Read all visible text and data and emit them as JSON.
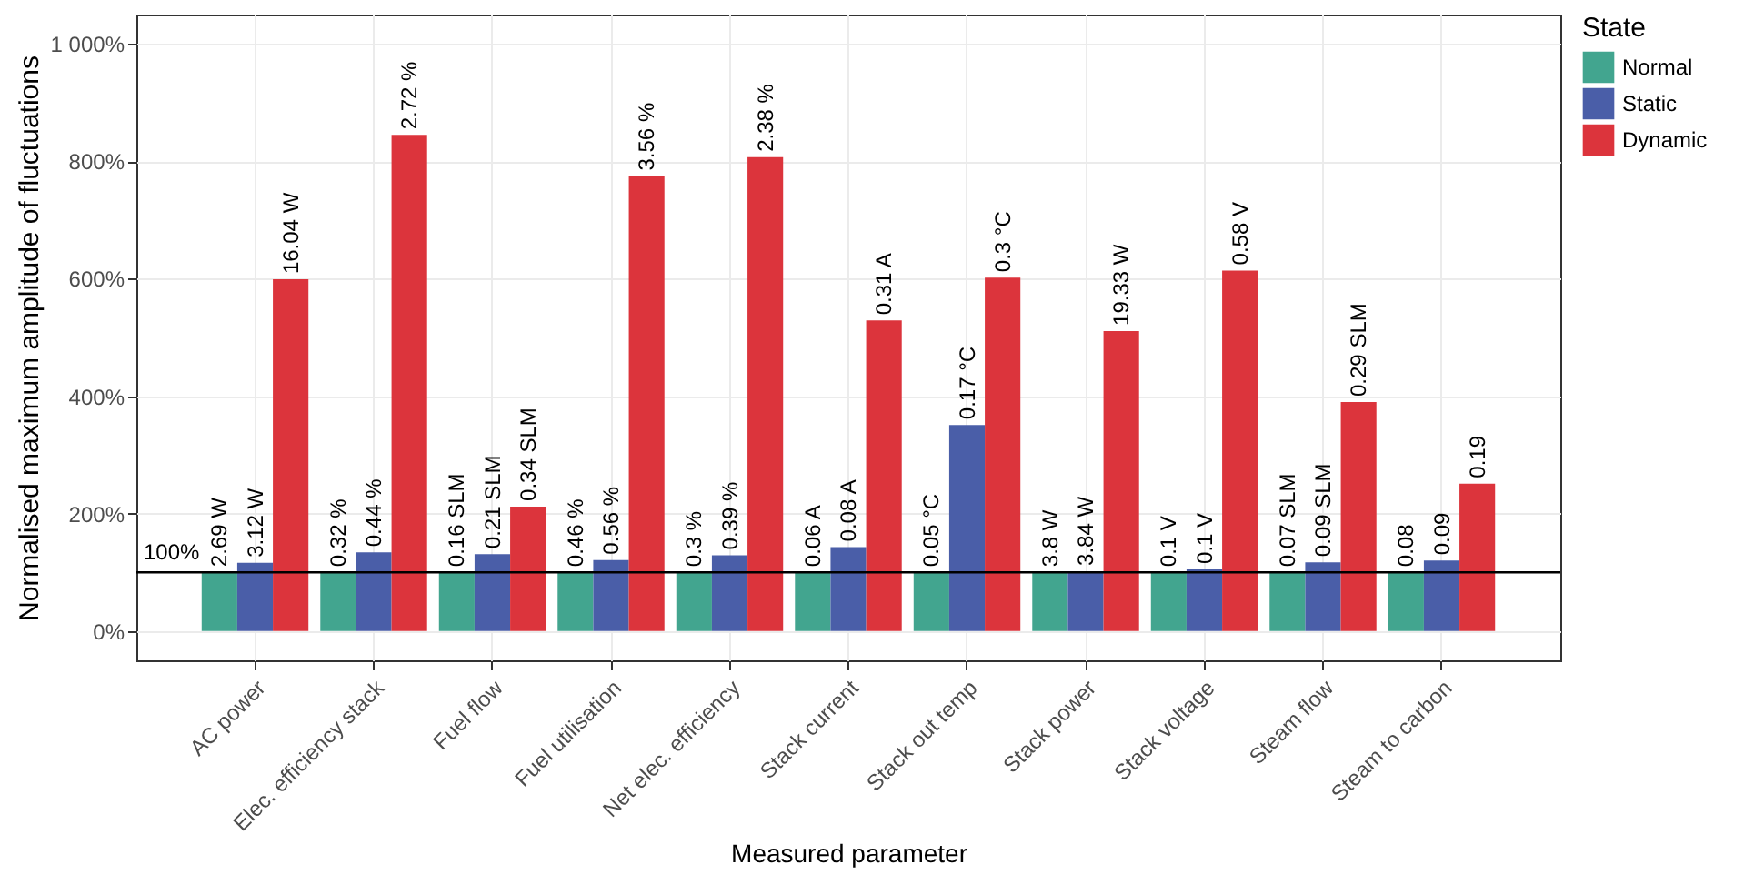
{
  "chart_data": {
    "type": "bar",
    "xlabel": "Measured parameter",
    "ylabel": "Normalised maximum amplitude of fluctuations",
    "legend_title": "State",
    "categories": [
      "AC power",
      "Elec. efficiency stack",
      "Fuel flow",
      "Fuel utilisation",
      "Net elec. efficiency",
      "Stack current",
      "Stack out temp",
      "Stack power",
      "Stack voltage",
      "Steam flow",
      "Steam to carbon"
    ],
    "series": [
      {
        "name": "Normal",
        "color": "#42a58f",
        "values": [
          100,
          100,
          100,
          100,
          100,
          100,
          100,
          100,
          100,
          100,
          100
        ]
      },
      {
        "name": "Static",
        "color": "#4a5ea8",
        "values": [
          116,
          134,
          131,
          121,
          129,
          143,
          351,
          102,
          105,
          117,
          120
        ]
      },
      {
        "name": "Dynamic",
        "color": "#dc343c",
        "values": [
          599,
          845,
          212,
          775,
          807,
          529,
          602,
          511,
          614,
          390,
          251
        ]
      }
    ],
    "annotations": [
      {
        "text": "2.69 W",
        "x": "AC power",
        "y": 100
      },
      {
        "text": "3.12 W",
        "x": "AC power",
        "y": 116
      },
      "16.04 W",
      {
        "text": "0.32 %",
        "x": "Elec. efficiency stack",
        "y": 100
      },
      {
        "text": "0.44 %",
        "x": "Elec. efficiency stack",
        "y": 134
      },
      "2.72 %",
      {
        "text": "0.16 SLM",
        "x": "Fuel flow",
        "y": 100
      },
      {
        "text": "0.21 SLM",
        "x": "Fuel flow",
        "y": 131
      },
      "0.34 SLM",
      {
        "text": "0.46 %",
        "x": "Fuel utilisation",
        "y": 100
      },
      {
        "text": "0.56 %",
        "x": "Fuel utilisation",
        "y": 121
      },
      "3.56 %",
      {
        "text": "0.3 %",
        "x": "Net elec. efficiency",
        "y": 100
      },
      {
        "text": "0.39 %",
        "x": "Net elec. efficiency",
        "y": 129
      },
      "2.38 %",
      {
        "text": "0.06 A",
        "x": "Stack current",
        "y": 100
      },
      {
        "text": "0.08 A",
        "x": "Stack current",
        "y": 143
      },
      "0.31 A",
      {
        "text": "0.05 °C",
        "x": "Stack out temp",
        "y": 100
      },
      {
        "text": "0.17 °C",
        "x": "Stack out temp",
        "y": 351
      },
      "0.3 °C",
      {
        "text": "3.8 W",
        "x": "Stack power",
        "y": 100
      },
      {
        "text": "3.84 W",
        "x": "Stack power",
        "y": 102
      },
      "19.33 W",
      {
        "text": "0.1 V",
        "x": "Stack voltage",
        "y": 100
      },
      {
        "text": "0.1 V",
        "x": "Stack voltage",
        "y": 105
      },
      "0.58 V",
      {
        "text": "0.07 SLM",
        "x": "Steam flow",
        "y": 100
      },
      {
        "text": "0.09 SLM",
        "x": "Steam flow",
        "y": 117
      },
      "0.29 SLM",
      {
        "text": "0.08",
        "x": "Steam to carbon",
        "y": 100
      },
      {
        "text": "0.09",
        "x": "Steam to carbon",
        "y": 120
      },
      "0.19"
    ],
    "ylim": [
      -50,
      1050
    ],
    "yticks": [
      {
        "value": 0,
        "label": "0%"
      },
      {
        "value": 200,
        "label": "200%"
      },
      {
        "value": 400,
        "label": "400%"
      },
      {
        "value": 600,
        "label": "600%"
      },
      {
        "value": 800,
        "label": "800%"
      },
      {
        "value": 1000,
        "label": "1 000%"
      }
    ],
    "ref_lines": [
      {
        "axis": "y",
        "value": 100,
        "label": "100%",
        "color": "#000000"
      }
    ],
    "grid": true,
    "legend": "right"
  }
}
